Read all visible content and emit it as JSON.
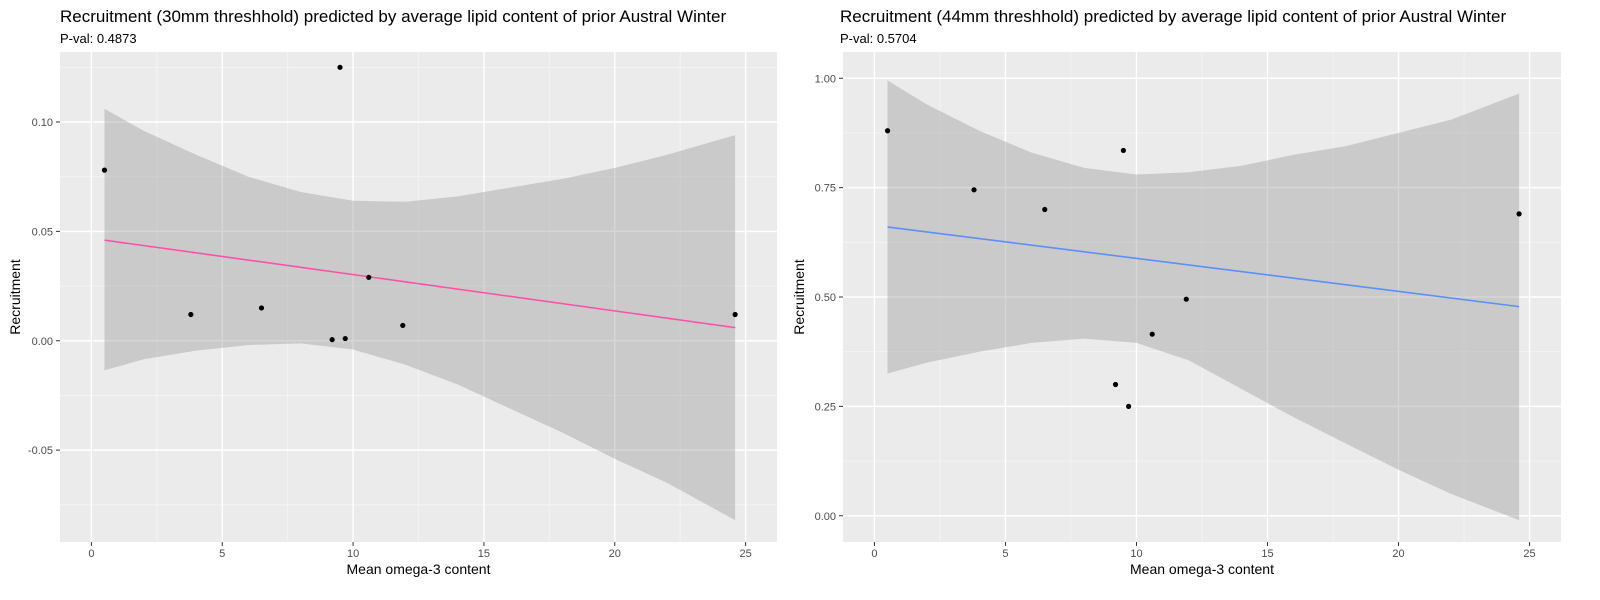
{
  "chart_data": [
    {
      "type": "scatter",
      "title": "Recruitment (30mm threshhold) predicted by average lipid content of prior Austral Winter",
      "subtitle": "P-val:  0.4873",
      "xlabel": "Mean omega-3 content",
      "ylabel": "Recruitment",
      "xlim": [
        -1.2,
        26.2
      ],
      "ylim": [
        -0.092,
        0.132
      ],
      "xticks": [
        0,
        5,
        10,
        15,
        20,
        25
      ],
      "xtick_labels": [
        "0",
        "5",
        "10",
        "15",
        "20",
        "25"
      ],
      "yticks": [
        -0.05,
        0,
        0.05,
        0.1
      ],
      "ytick_labels": [
        "-0.05",
        "0.00",
        "0.05",
        "0.10"
      ],
      "grid": true,
      "line_color": "#ff4fa8",
      "points": [
        {
          "x": 0.5,
          "y": 0.078
        },
        {
          "x": 3.8,
          "y": 0.012
        },
        {
          "x": 6.5,
          "y": 0.015
        },
        {
          "x": 9.2,
          "y": 0.0005
        },
        {
          "x": 9.5,
          "y": 0.125
        },
        {
          "x": 9.7,
          "y": 0.001
        },
        {
          "x": 10.6,
          "y": 0.029
        },
        {
          "x": 11.9,
          "y": 0.007
        },
        {
          "x": 24.6,
          "y": 0.012
        }
      ],
      "fit": {
        "x": [
          0.5,
          24.6
        ],
        "y": [
          0.046,
          0.006
        ]
      },
      "band": [
        {
          "x": 0.5,
          "lo": -0.0135,
          "hi": 0.106
        },
        {
          "x": 2,
          "lo": -0.0085,
          "hi": 0.096
        },
        {
          "x": 4,
          "lo": -0.0045,
          "hi": 0.085
        },
        {
          "x": 6,
          "lo": -0.002,
          "hi": 0.075
        },
        {
          "x": 8,
          "lo": -0.0012,
          "hi": 0.068
        },
        {
          "x": 10,
          "lo": -0.004,
          "hi": 0.064
        },
        {
          "x": 12,
          "lo": -0.011,
          "hi": 0.0635
        },
        {
          "x": 14,
          "lo": -0.02,
          "hi": 0.066
        },
        {
          "x": 16,
          "lo": -0.031,
          "hi": 0.07
        },
        {
          "x": 18,
          "lo": -0.042,
          "hi": 0.074
        },
        {
          "x": 20,
          "lo": -0.054,
          "hi": 0.079
        },
        {
          "x": 22,
          "lo": -0.065,
          "hi": 0.085
        },
        {
          "x": 24.6,
          "lo": -0.082,
          "hi": 0.094
        }
      ]
    },
    {
      "type": "scatter",
      "title": "Recruitment (44mm threshhold) predicted by average lipid content of prior Austral Winter",
      "subtitle": "P-val:  0.5704",
      "xlabel": "Mean omega-3 content",
      "ylabel": "Recruitment",
      "xlim": [
        -1.2,
        26.2
      ],
      "ylim": [
        -0.06,
        1.06
      ],
      "xticks": [
        0,
        5,
        10,
        15,
        20,
        25
      ],
      "xtick_labels": [
        "0",
        "5",
        "10",
        "15",
        "20",
        "25"
      ],
      "yticks": [
        0,
        0.25,
        0.5,
        0.75,
        1
      ],
      "ytick_labels": [
        "0.00",
        "0.25",
        "0.50",
        "0.75",
        "1.00"
      ],
      "grid": true,
      "line_color": "#5b8ff9",
      "points": [
        {
          "x": 0.5,
          "y": 0.88
        },
        {
          "x": 3.8,
          "y": 0.745
        },
        {
          "x": 6.5,
          "y": 0.7
        },
        {
          "x": 9.2,
          "y": 0.3
        },
        {
          "x": 9.5,
          "y": 0.835
        },
        {
          "x": 9.7,
          "y": 0.25
        },
        {
          "x": 10.6,
          "y": 0.415
        },
        {
          "x": 11.9,
          "y": 0.495
        },
        {
          "x": 24.6,
          "y": 0.69
        }
      ],
      "fit": {
        "x": [
          0.5,
          24.6
        ],
        "y": [
          0.66,
          0.478
        ]
      },
      "band": [
        {
          "x": 0.5,
          "lo": 0.325,
          "hi": 0.995
        },
        {
          "x": 2,
          "lo": 0.35,
          "hi": 0.94
        },
        {
          "x": 4,
          "lo": 0.375,
          "hi": 0.88
        },
        {
          "x": 6,
          "lo": 0.395,
          "hi": 0.83
        },
        {
          "x": 8,
          "lo": 0.405,
          "hi": 0.795
        },
        {
          "x": 10,
          "lo": 0.395,
          "hi": 0.78
        },
        {
          "x": 12,
          "lo": 0.355,
          "hi": 0.785
        },
        {
          "x": 14,
          "lo": 0.29,
          "hi": 0.8
        },
        {
          "x": 16,
          "lo": 0.225,
          "hi": 0.825
        },
        {
          "x": 18,
          "lo": 0.165,
          "hi": 0.845
        },
        {
          "x": 20,
          "lo": 0.105,
          "hi": 0.875
        },
        {
          "x": 22,
          "lo": 0.05,
          "hi": 0.905
        },
        {
          "x": 24.6,
          "lo": -0.01,
          "hi": 0.965
        }
      ]
    }
  ]
}
